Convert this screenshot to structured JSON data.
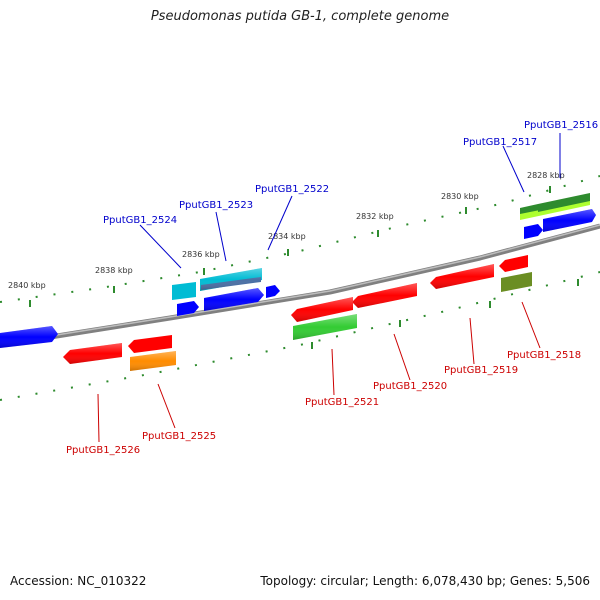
{
  "title": "Pseudomonas putida GB-1, complete genome",
  "footer": {
    "accession": "Accession: NC_010322",
    "summary": "Topology: circular; Length: 6,078,430 bp; Genes: 5,506"
  },
  "colors": {
    "backbone": "#808080",
    "tick": "#2e8b2e",
    "label_forward": "#0000cc",
    "label_reverse": "#cc0000"
  },
  "ticks": [
    "2840 kbp",
    "2838 kbp",
    "2836 kbp",
    "2834 kbp",
    "2832 kbp",
    "2830 kbp",
    "2828 kbp"
  ],
  "genes": [
    {
      "label": "PputGB1_2516",
      "strand": "forward",
      "color": "#2e8b2e"
    },
    {
      "label": "PputGB1_2517",
      "strand": "forward",
      "color": "#2e8b2e"
    },
    {
      "label": "PputGB1_2518",
      "strand": "reverse",
      "color": "#6b8e23"
    },
    {
      "label": "PputGB1_2519",
      "strand": "reverse",
      "color": "#ff0000"
    },
    {
      "label": "PputGB1_2520",
      "strand": "reverse",
      "color": "#ff0000"
    },
    {
      "label": "PputGB1_2521",
      "strand": "reverse",
      "color": "#33cc33"
    },
    {
      "label": "PputGB1_2522",
      "strand": "forward",
      "color": "#0000ff"
    },
    {
      "label": "PputGB1_2523",
      "strand": "forward",
      "color": "#00bcd4"
    },
    {
      "label": "PputGB1_2524",
      "strand": "forward",
      "color": "#00bcd4"
    },
    {
      "label": "PputGB1_2525",
      "strand": "reverse",
      "color": "#ff8c00"
    },
    {
      "label": "PputGB1_2526",
      "strand": "reverse",
      "color": "#ff0000"
    }
  ]
}
